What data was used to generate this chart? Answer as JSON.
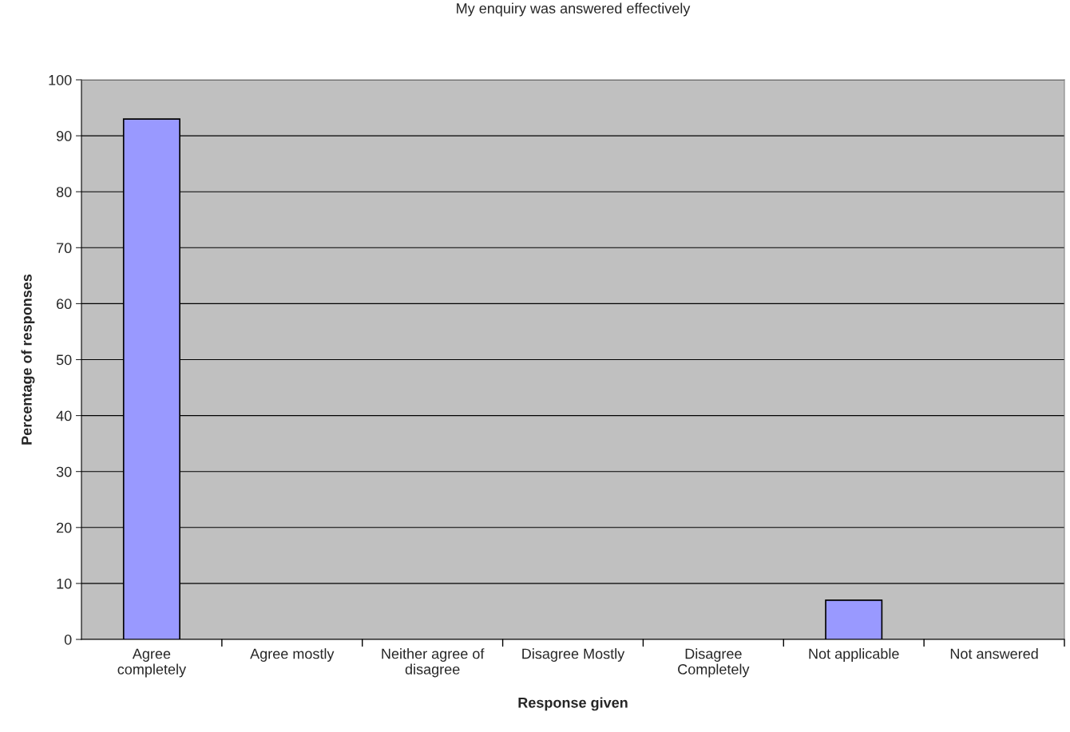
{
  "chart_data": {
    "type": "bar",
    "title": "My enquiry was answered effectively",
    "xlabel": "Response given",
    "ylabel": "Percentage of responses",
    "categories": [
      "Agree\ncompletely",
      "Agree mostly",
      "Neither agree of\ndisagree",
      "Disagree Mostly",
      "Disagree\nCompletely",
      "Not applicable",
      "Not answered"
    ],
    "values": [
      93,
      0,
      0,
      0,
      0,
      7,
      0
    ],
    "color": "#9999ff",
    "ylim": [
      0,
      100
    ],
    "yticks": [
      0,
      10,
      20,
      30,
      40,
      50,
      60,
      70,
      80,
      90,
      100
    ],
    "grid": "y",
    "legend": false
  }
}
